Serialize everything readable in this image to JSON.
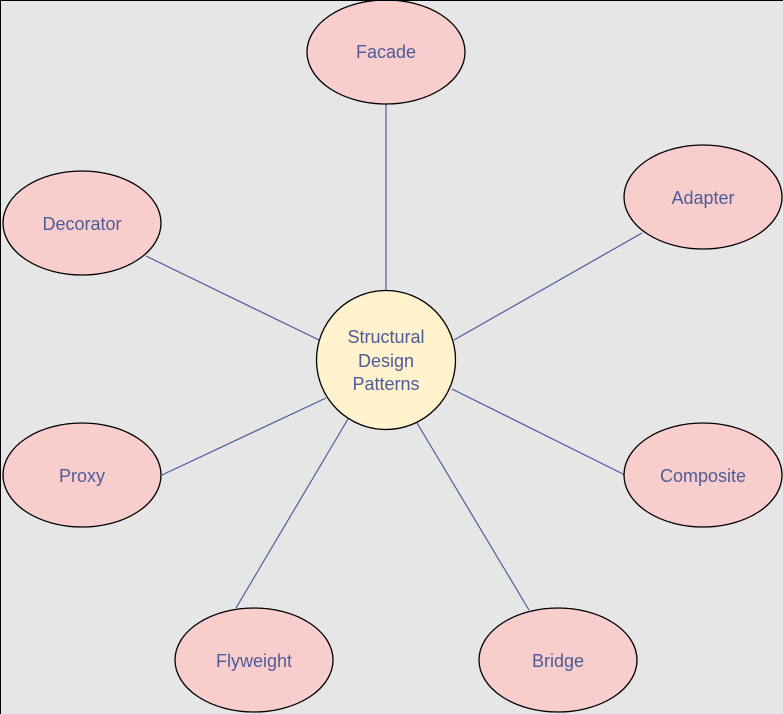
{
  "diagram": {
    "center": {
      "lines": [
        "Structural",
        "Design",
        "Patterns"
      ],
      "fill": "#fff2cc"
    },
    "nodes": [
      {
        "id": "facade",
        "label": "Facade"
      },
      {
        "id": "adapter",
        "label": "Adapter"
      },
      {
        "id": "decorator",
        "label": "Decorator"
      },
      {
        "id": "proxy",
        "label": "Proxy"
      },
      {
        "id": "composite",
        "label": "Composite"
      },
      {
        "id": "flyweight",
        "label": "Flyweight"
      },
      {
        "id": "bridge",
        "label": "Bridge"
      }
    ],
    "colors": {
      "background": "#e6e6e6",
      "node_fill": "#f8cecc",
      "center_fill": "#fff2cc",
      "outline": "#000000",
      "edge": "#4d5b99",
      "text": "#4d5b99"
    }
  }
}
